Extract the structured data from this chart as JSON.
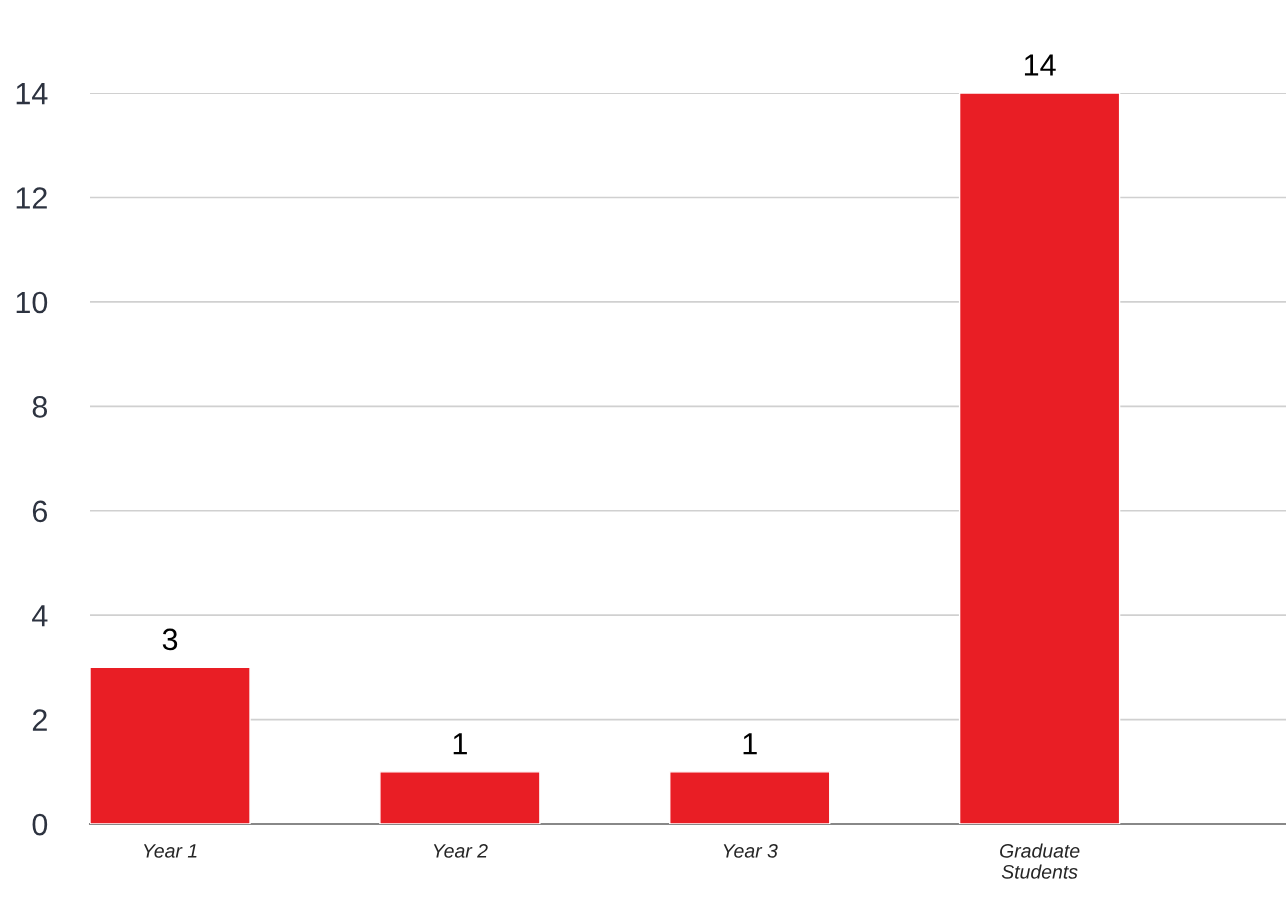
{
  "chart_data": {
    "type": "bar",
    "categories": [
      "Year 1",
      "Year 2",
      "Year 3",
      "Graduate Students"
    ],
    "values": [
      3,
      1,
      1,
      14
    ],
    "color": "#e91e25",
    "ylim": [
      0,
      14
    ],
    "yticks": [
      0,
      2,
      4,
      6,
      8,
      10,
      12,
      14
    ],
    "grid": "y",
    "data_labels": true,
    "legend": false
  }
}
